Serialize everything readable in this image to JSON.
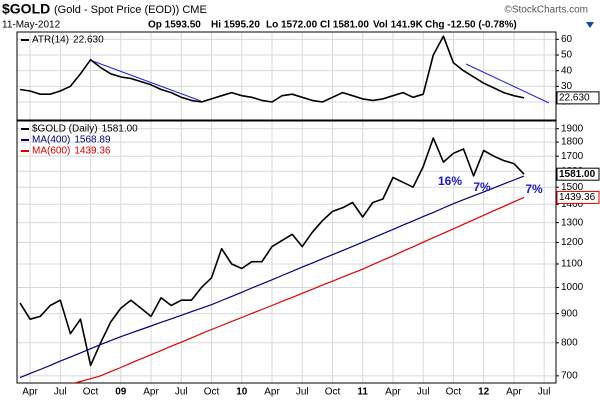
{
  "header": {
    "symbol": "$GOLD",
    "description": "(Gold - Spot Price (EOD)) CME",
    "date": "11-May-2012",
    "quote": [
      "Op 1593.50",
      "Hi 1595.20",
      "Lo 1572.00",
      "Cl 1581.00",
      "Vol 141.9K",
      "Chg -12.50 (-0.78%)"
    ],
    "credit": "©StockCharts.com"
  },
  "chart_data": [
    {
      "type": "line",
      "ylim": [
        8.5,
        64.7
      ],
      "yticks": [
        20,
        30,
        40,
        50,
        60
      ],
      "grid": true,
      "series": [
        {
          "name": "ATR(14)",
          "color": "#000000",
          "last_label": "22.630",
          "boxed": true,
          "values": [
            28,
            27,
            25,
            25,
            27,
            30,
            38,
            47,
            42,
            38,
            36,
            35,
            33,
            31,
            28,
            26,
            23,
            21,
            20,
            22,
            24,
            26,
            24,
            23,
            21,
            20,
            24,
            25,
            23,
            21,
            20,
            23,
            26,
            24,
            22,
            21,
            22,
            24,
            26,
            23,
            25,
            50,
            62,
            45,
            40,
            36,
            32,
            29,
            26,
            24,
            22.63,
            null,
            null
          ]
        }
      ]
    },
    {
      "type": "line",
      "log_scale": true,
      "ylim": [
        680,
        1960
      ],
      "yticks": [
        700,
        800,
        900,
        1000,
        1100,
        1200,
        1300,
        1400,
        1500,
        1600,
        1700,
        1800,
        1900
      ],
      "grid": true,
      "categories": [
        null,
        "Apr",
        null,
        null,
        "Jul",
        null,
        null,
        "Oct",
        null,
        null,
        "09",
        null,
        null,
        "Apr",
        null,
        null,
        "Jul",
        null,
        null,
        "Oct",
        null,
        null,
        "10",
        null,
        null,
        "Apr",
        null,
        null,
        "Jul",
        null,
        null,
        "Oct",
        null,
        null,
        "11",
        null,
        null,
        "Apr",
        null,
        null,
        "Jul",
        null,
        null,
        "Oct",
        null,
        null,
        "12",
        null,
        null,
        "Apr",
        null,
        null,
        "Jul"
      ],
      "series": [
        {
          "name": "$GOLD (Daily)",
          "color": "#000000",
          "last_label": "1581.00",
          "boxed": true,
          "values": [
            940,
            880,
            890,
            930,
            950,
            830,
            880,
            730,
            800,
            870,
            920,
            950,
            920,
            890,
            960,
            930,
            950,
            950,
            1000,
            1040,
            1170,
            1100,
            1080,
            1110,
            1110,
            1180,
            1210,
            1240,
            1180,
            1250,
            1310,
            1360,
            1380,
            1410,
            1330,
            1410,
            1430,
            1560,
            1530,
            1500,
            1630,
            1830,
            1660,
            1720,
            1750,
            1570,
            1740,
            1700,
            1670,
            1650,
            1581,
            null,
            null
          ]
        },
        {
          "name": "MA(400)",
          "color": "#000080",
          "last_label": "1568.89",
          "boxed": false,
          "values": [
            695,
            707,
            718,
            730,
            743,
            755,
            768,
            781,
            794,
            807,
            820,
            832,
            844,
            856,
            869,
            881,
            894,
            907,
            920,
            933,
            949,
            965,
            981,
            998,
            1015,
            1032,
            1050,
            1068,
            1086,
            1104,
            1123,
            1142,
            1161,
            1181,
            1201,
            1222,
            1243,
            1265,
            1287,
            1309,
            1332,
            1355,
            1379,
            1403,
            1426,
            1449,
            1472,
            1496,
            1520,
            1544,
            1568.89,
            null,
            null
          ]
        },
        {
          "name": "MA(600)",
          "color": "#e00000",
          "last_label": "1439.36",
          "boxed": true,
          "values": [
            640,
            647,
            654,
            662,
            669,
            677,
            684,
            692,
            700,
            712,
            724,
            737,
            750,
            762,
            775,
            789,
            802,
            816,
            830,
            844,
            858,
            872,
            886,
            901,
            915,
            930,
            946,
            961,
            977,
            993,
            1010,
            1026,
            1043,
            1060,
            1077,
            1097,
            1117,
            1137,
            1158,
            1179,
            1201,
            1223,
            1245,
            1268,
            1291,
            1315,
            1339,
            1364,
            1388,
            1414,
            1439.36,
            null,
            null
          ]
        }
      ],
      "annotations": [
        "16%",
        "7%",
        "7%"
      ],
      "annotation_color": "#1a1acc"
    }
  ]
}
